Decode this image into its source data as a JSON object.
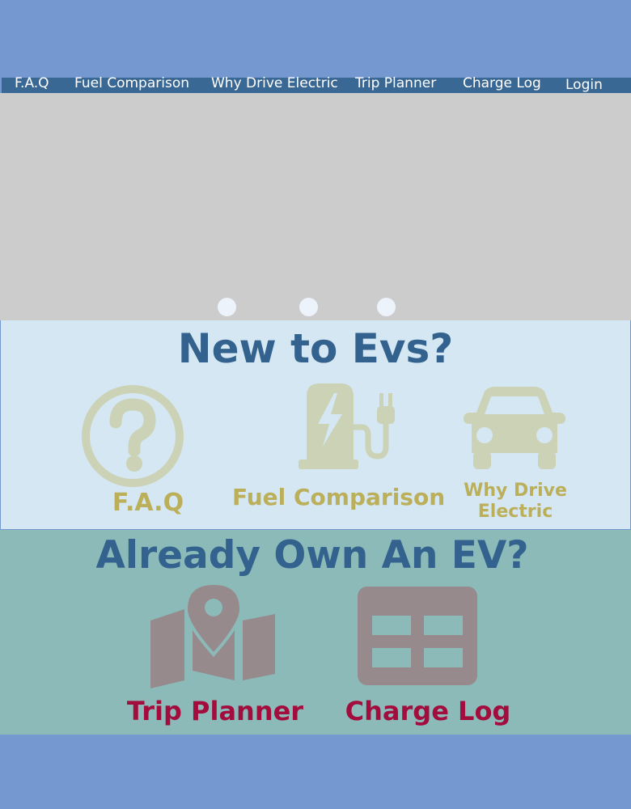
{
  "nav": {
    "items": [
      "F.A.Q",
      "Fuel Comparison",
      "Why Drive Electric",
      "Trip Planner",
      "Charge Log"
    ],
    "login_label": "Login"
  },
  "carousel": {
    "slide_count": 3
  },
  "new_section": {
    "title": "New to Evs?",
    "tiles": [
      {
        "label": "F.A.Q",
        "icon": "question-circle-icon"
      },
      {
        "label": "Fuel Comparison",
        "icon": "charging-station-icon"
      },
      {
        "label_line1": "Why Drive",
        "label_line2": "Electric",
        "icon": "car-icon"
      }
    ]
  },
  "own_section": {
    "title": "Already Own An EV?",
    "tiles": [
      {
        "label": "Trip Planner",
        "icon": "map-pin-icon"
      },
      {
        "label": "Charge Log",
        "icon": "grid-table-icon"
      }
    ]
  },
  "colors": {
    "page_background": "#7498cf",
    "nav_background": "#3a6894",
    "banner": "#cccccc",
    "new_section_background": "#d4e7f2",
    "own_section_background": "#8bbab8",
    "title_text": "#33628e",
    "new_icon": "#ccd2b6",
    "new_label": "#bcaf5a",
    "own_icon": "#968a8d",
    "own_label": "#a30d3e"
  }
}
